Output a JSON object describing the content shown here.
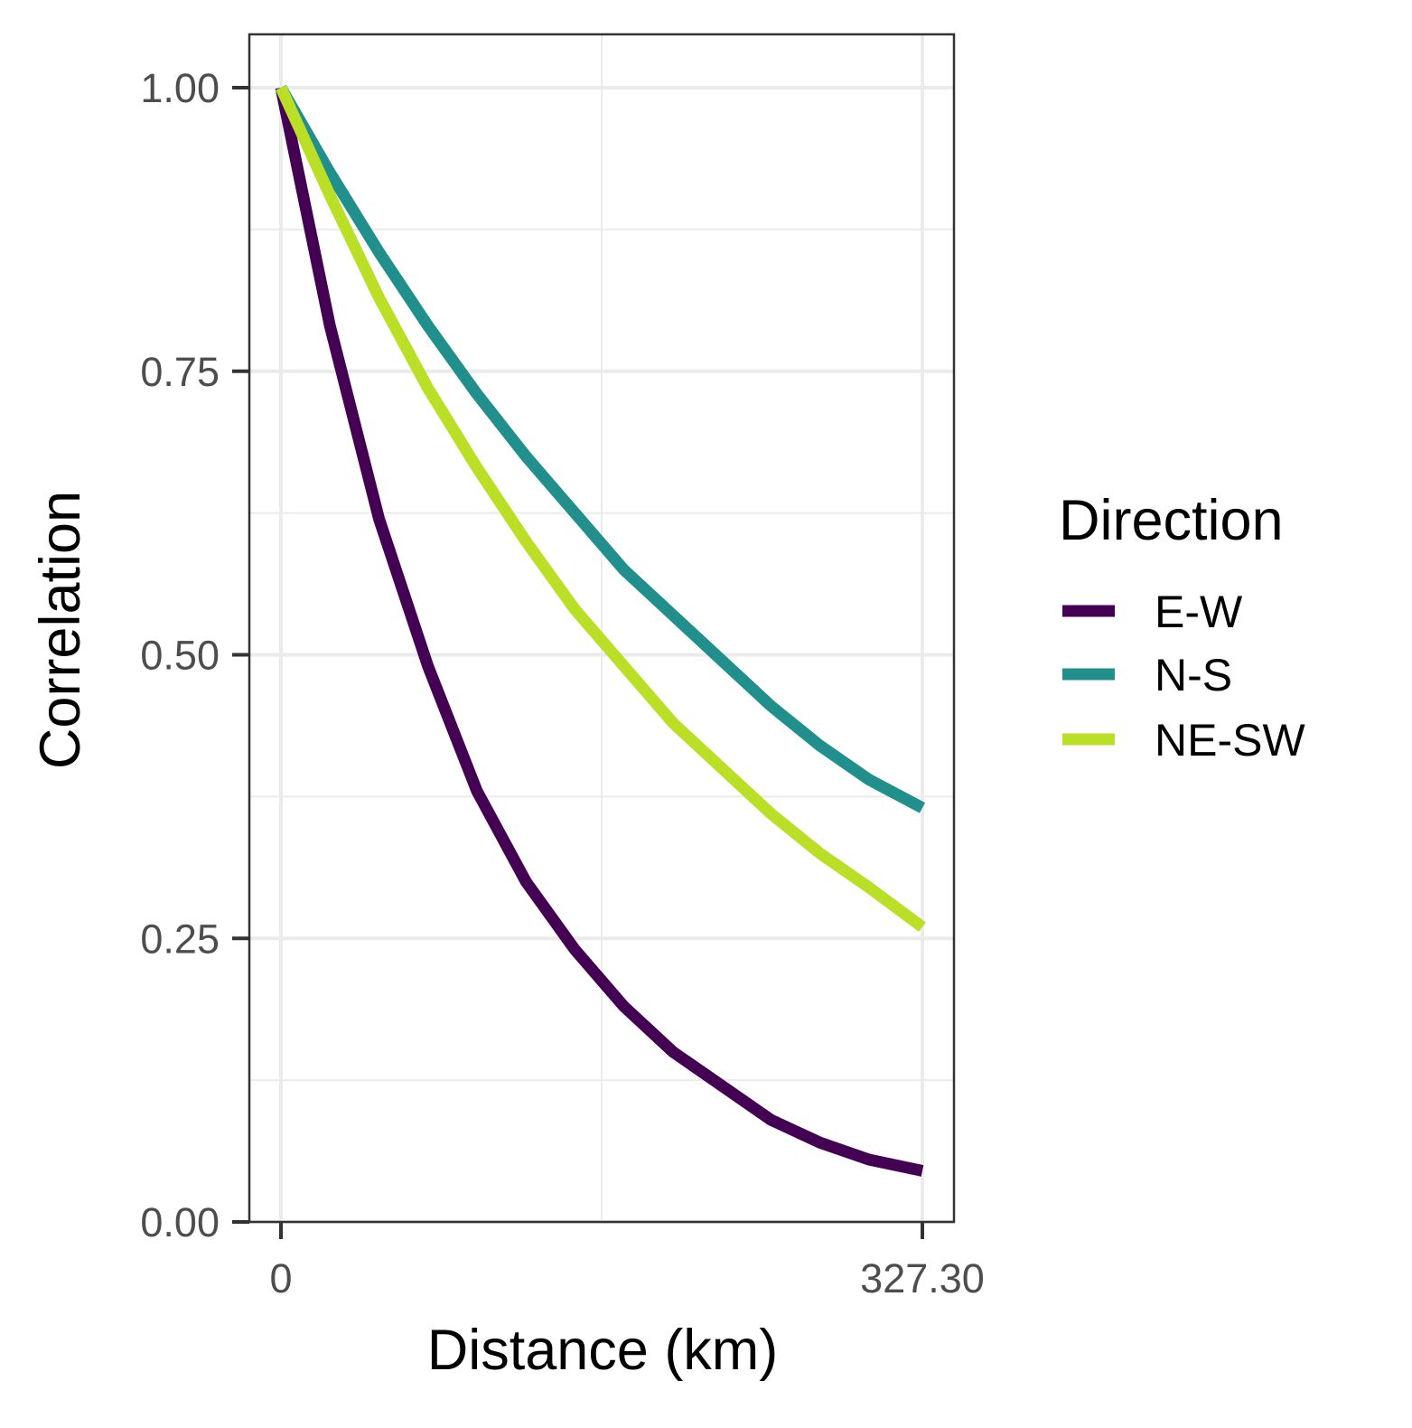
{
  "chart_data": {
    "type": "line",
    "xlabel": "Distance (km)",
    "ylabel": "Correlation",
    "xlim": [
      0,
      327.3
    ],
    "ylim": [
      0,
      1
    ],
    "x_ticks": [
      "0",
      "327.30"
    ],
    "y_ticks": [
      "0.00",
      "0.25",
      "0.50",
      "0.75",
      "1.00"
    ],
    "grid": true,
    "legend": {
      "title": "Direction",
      "position": "right"
    },
    "series": [
      {
        "name": "E-W",
        "color": "#440154",
        "x": [
          0,
          25,
          50,
          75,
          100,
          125,
          150,
          175,
          200,
          225,
          250,
          275,
          300,
          327.3
        ],
        "y": [
          1.0,
          0.79,
          0.62,
          0.49,
          0.38,
          0.3,
          0.24,
          0.19,
          0.15,
          0.12,
          0.09,
          0.07,
          0.055,
          0.045
        ]
      },
      {
        "name": "N-S",
        "color": "#21908C",
        "x": [
          0,
          25,
          50,
          75,
          100,
          125,
          150,
          175,
          200,
          225,
          250,
          275,
          300,
          327.3
        ],
        "y": [
          1.0,
          0.925,
          0.855,
          0.79,
          0.73,
          0.675,
          0.625,
          0.575,
          0.535,
          0.495,
          0.455,
          0.42,
          0.39,
          0.365
        ]
      },
      {
        "name": "NE-SW",
        "color": "#BBDF27",
        "x": [
          0,
          25,
          50,
          75,
          100,
          125,
          150,
          175,
          200,
          225,
          250,
          275,
          300,
          327.3
        ],
        "y": [
          1.0,
          0.905,
          0.815,
          0.735,
          0.665,
          0.6,
          0.54,
          0.49,
          0.44,
          0.4,
          0.36,
          0.325,
          0.295,
          0.26
        ]
      }
    ]
  }
}
